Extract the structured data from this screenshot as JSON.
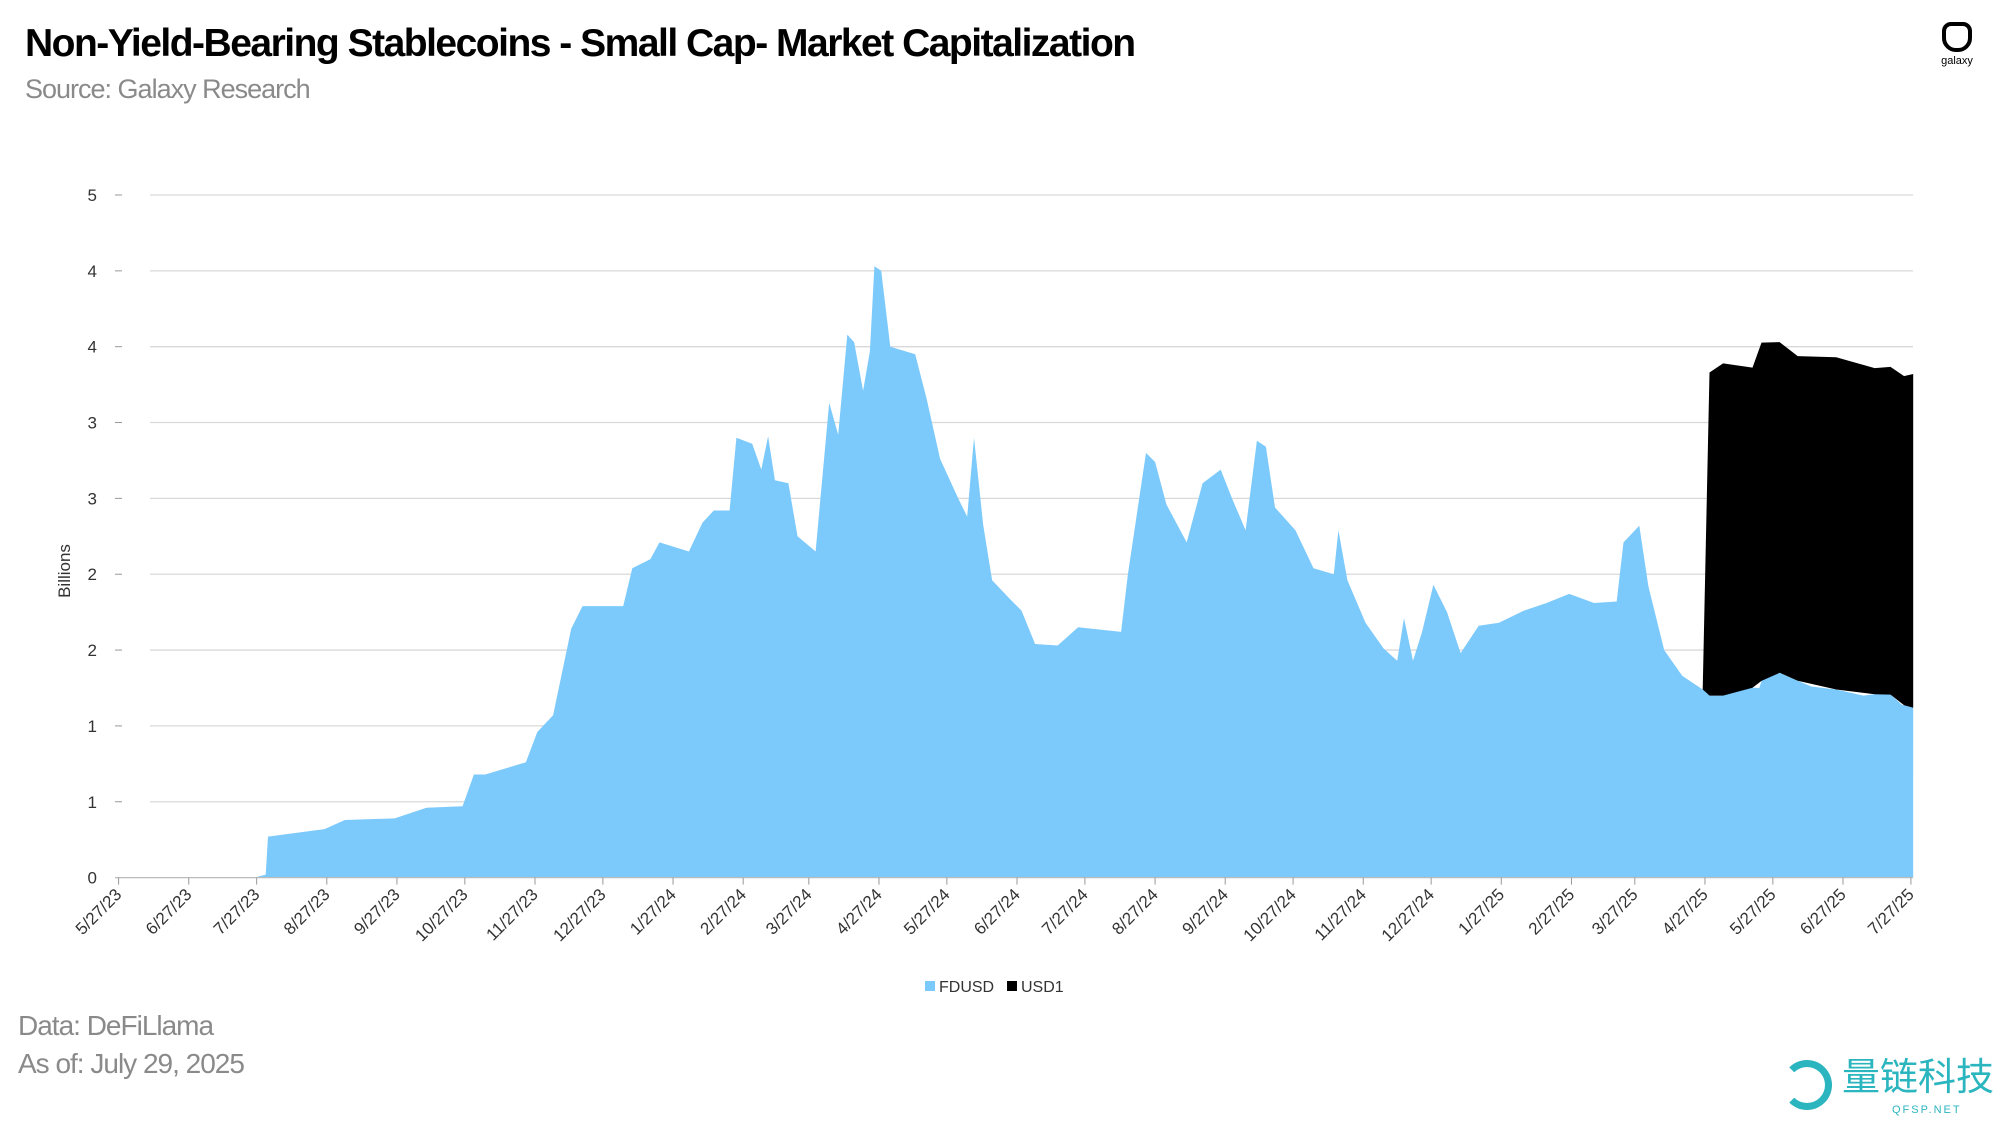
{
  "header": {
    "title": "Non-Yield-Bearing Stablecoins - Small Cap- Market Capitalization",
    "subtitle": "Source: Galaxy Research",
    "logo_text": "galaxy"
  },
  "footer": {
    "data_source": "Data: DeFiLlama",
    "as_of": "As of: July 29, 2025"
  },
  "watermark": {
    "text_cn": "量链科技",
    "text_en": "QFSP.NET"
  },
  "colors": {
    "fdusd": "#7cc9fb",
    "usd1": "#000000",
    "grid": "#d9d9d9",
    "axis_text": "#333333"
  },
  "chart_data": {
    "type": "area",
    "stacked": true,
    "title": "Non-Yield-Bearing Stablecoins - Small Cap- Market Capitalization",
    "ylabel": "Billions",
    "xlabel": "",
    "ylim": [
      0,
      4.5
    ],
    "y_ticks": [
      0,
      0.5,
      1,
      1.5,
      2,
      2.5,
      3,
      3.5,
      4,
      4.5
    ],
    "y_tick_labels": [
      "0",
      "1",
      "1",
      "2",
      "2",
      "3",
      "3",
      "4",
      "4",
      "5"
    ],
    "x_range": [
      "2023-05-27",
      "2025-07-28"
    ],
    "x_ticks": [
      "2023-05-27",
      "2023-06-27",
      "2023-07-27",
      "2023-08-27",
      "2023-09-27",
      "2023-10-27",
      "2023-11-27",
      "2023-12-27",
      "2024-01-27",
      "2024-02-27",
      "2024-03-27",
      "2024-04-27",
      "2024-05-27",
      "2024-06-27",
      "2024-07-27",
      "2024-08-27",
      "2024-09-27",
      "2024-10-27",
      "2024-11-27",
      "2024-12-27",
      "2025-01-27",
      "2025-02-27",
      "2025-03-27",
      "2025-04-27",
      "2025-05-27",
      "2025-06-27",
      "2025-07-27"
    ],
    "x_tick_labels": [
      "5/27/23",
      "6/27/23",
      "7/27/23",
      "8/27/23",
      "9/27/23",
      "10/27/23",
      "11/27/23",
      "12/27/23",
      "1/27/24",
      "2/27/24",
      "3/27/24",
      "4/27/24",
      "5/27/24",
      "6/27/24",
      "7/27/24",
      "8/27/24",
      "9/27/24",
      "10/27/24",
      "11/27/24",
      "12/27/24",
      "1/27/25",
      "2/27/25",
      "3/27/25",
      "4/27/25",
      "5/27/25",
      "6/27/25",
      "7/27/25"
    ],
    "grid": true,
    "legend_position": "bottom-center",
    "series": [
      {
        "name": "FDUSD",
        "color": "#7cc9fb",
        "points": [
          [
            "2023-07-26",
            0
          ],
          [
            "2023-07-31",
            0.02
          ],
          [
            "2023-08-01",
            0.27
          ],
          [
            "2023-08-26",
            0.32
          ],
          [
            "2023-09-04",
            0.38
          ],
          [
            "2023-09-26",
            0.39
          ],
          [
            "2023-10-10",
            0.46
          ],
          [
            "2023-10-26",
            0.47
          ],
          [
            "2023-10-31",
            0.68
          ],
          [
            "2023-11-05",
            0.68
          ],
          [
            "2023-11-23",
            0.76
          ],
          [
            "2023-11-28",
            0.96
          ],
          [
            "2023-12-05",
            1.07
          ],
          [
            "2023-12-13",
            1.64
          ],
          [
            "2023-12-18",
            1.79
          ],
          [
            "2024-01-05",
            1.79
          ],
          [
            "2024-01-09",
            2.04
          ],
          [
            "2024-01-17",
            2.1
          ],
          [
            "2024-01-21",
            2.21
          ],
          [
            "2024-02-03",
            2.15
          ],
          [
            "2024-02-09",
            2.34
          ],
          [
            "2024-02-14",
            2.42
          ],
          [
            "2024-02-21",
            2.42
          ],
          [
            "2024-02-24",
            2.9
          ],
          [
            "2024-03-02",
            2.86
          ],
          [
            "2024-03-06",
            2.69
          ],
          [
            "2024-03-09",
            2.91
          ],
          [
            "2024-03-12",
            2.62
          ],
          [
            "2024-03-18",
            2.6
          ],
          [
            "2024-03-22",
            2.25
          ],
          [
            "2024-03-30",
            2.15
          ],
          [
            "2024-04-05",
            3.13
          ],
          [
            "2024-04-09",
            2.92
          ],
          [
            "2024-04-13",
            3.58
          ],
          [
            "2024-04-16",
            3.53
          ],
          [
            "2024-04-20",
            3.21
          ],
          [
            "2024-04-23",
            3.47
          ],
          [
            "2024-04-25",
            4.03
          ],
          [
            "2024-04-28",
            4.0
          ],
          [
            "2024-05-02",
            3.5
          ],
          [
            "2024-05-13",
            3.45
          ],
          [
            "2024-05-18",
            3.16
          ],
          [
            "2024-05-24",
            2.76
          ],
          [
            "2024-06-01",
            2.5
          ],
          [
            "2024-06-05",
            2.38
          ],
          [
            "2024-06-08",
            2.9
          ],
          [
            "2024-06-12",
            2.33
          ],
          [
            "2024-06-16",
            1.96
          ],
          [
            "2024-06-23",
            1.85
          ],
          [
            "2024-06-29",
            1.76
          ],
          [
            "2024-07-05",
            1.54
          ],
          [
            "2024-07-15",
            1.53
          ],
          [
            "2024-07-24",
            1.65
          ],
          [
            "2024-08-12",
            1.62
          ],
          [
            "2024-08-15",
            2.0
          ],
          [
            "2024-08-23",
            2.8
          ],
          [
            "2024-08-27",
            2.74
          ],
          [
            "2024-09-01",
            2.46
          ],
          [
            "2024-09-10",
            2.21
          ],
          [
            "2024-09-17",
            2.6
          ],
          [
            "2024-09-25",
            2.69
          ],
          [
            "2024-09-30",
            2.5
          ],
          [
            "2024-10-06",
            2.29
          ],
          [
            "2024-10-11",
            2.88
          ],
          [
            "2024-10-15",
            2.84
          ],
          [
            "2024-10-19",
            2.44
          ],
          [
            "2024-10-28",
            2.29
          ],
          [
            "2024-11-05",
            2.04
          ],
          [
            "2024-11-14",
            2.0
          ],
          [
            "2024-11-16",
            2.29
          ],
          [
            "2024-11-20",
            1.96
          ],
          [
            "2024-11-28",
            1.68
          ],
          [
            "2024-12-06",
            1.51
          ],
          [
            "2024-12-12",
            1.43
          ],
          [
            "2024-12-15",
            1.71
          ],
          [
            "2024-12-19",
            1.43
          ],
          [
            "2024-12-23",
            1.62
          ],
          [
            "2024-12-28",
            1.93
          ],
          [
            "2025-01-03",
            1.75
          ],
          [
            "2025-01-09",
            1.48
          ],
          [
            "2025-01-17",
            1.66
          ],
          [
            "2025-01-26",
            1.68
          ],
          [
            "2025-02-06",
            1.76
          ],
          [
            "2025-02-16",
            1.81
          ],
          [
            "2025-02-26",
            1.87
          ],
          [
            "2025-03-09",
            1.81
          ],
          [
            "2025-03-19",
            1.82
          ],
          [
            "2025-03-22",
            2.21
          ],
          [
            "2025-03-29",
            2.32
          ],
          [
            "2025-04-02",
            1.92
          ],
          [
            "2025-04-09",
            1.5
          ],
          [
            "2025-04-17",
            1.33
          ],
          [
            "2025-04-26",
            1.24
          ],
          [
            "2025-04-29",
            1.2
          ],
          [
            "2025-05-05",
            1.2
          ],
          [
            "2025-05-07",
            1.26
          ],
          [
            "2025-05-21",
            1.25
          ],
          [
            "2025-05-24",
            1.39
          ],
          [
            "2025-06-02",
            1.33
          ],
          [
            "2025-06-13",
            1.26
          ],
          [
            "2025-06-24",
            1.24
          ],
          [
            "2025-07-06",
            1.2
          ],
          [
            "2025-07-17",
            1.22
          ],
          [
            "2025-07-23",
            1.14
          ],
          [
            "2025-07-28",
            1.12
          ]
        ]
      },
      {
        "name": "USD1",
        "color": "#000000",
        "points": [
          [
            "2025-04-26",
            0
          ],
          [
            "2025-04-27",
            0.72
          ],
          [
            "2025-04-29",
            2.13
          ],
          [
            "2025-05-05",
            2.19
          ],
          [
            "2025-05-18",
            2.11
          ],
          [
            "2025-05-22",
            2.23
          ],
          [
            "2025-05-30",
            2.18
          ],
          [
            "2025-06-07",
            2.14
          ],
          [
            "2025-06-24",
            2.19
          ],
          [
            "2025-07-11",
            2.15
          ],
          [
            "2025-07-18",
            2.16
          ],
          [
            "2025-07-24",
            2.17
          ],
          [
            "2025-07-28",
            2.2
          ]
        ]
      }
    ]
  }
}
